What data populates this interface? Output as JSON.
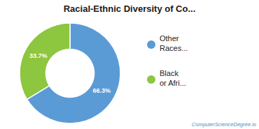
{
  "chart_data": {
    "type": "pie",
    "title": "Racial-Ethnic Diversity of Co...",
    "categories": [
      "Other\nRaces...",
      "Black\nor Afri..."
    ],
    "values": [
      66.3,
      33.7
    ],
    "value_labels": [
      "66.3%",
      "33.7%"
    ],
    "colors": [
      "#5b9bd5",
      "#8dc63f"
    ],
    "data_labels": true,
    "legend": "right",
    "annotations": [
      {
        "text": "ComputerScienceDegree.io",
        "color": "#4a8fc0"
      }
    ]
  }
}
